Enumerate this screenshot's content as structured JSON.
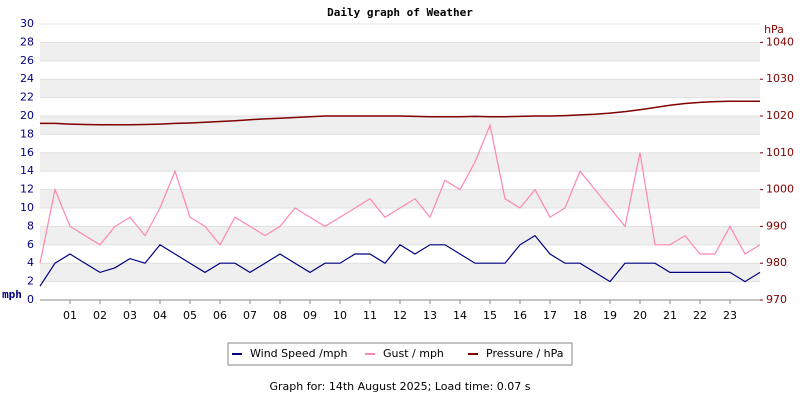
{
  "chart_data": {
    "type": "line",
    "title": "Daily graph of Weather",
    "y_label": "mph",
    "y2_label": "hPa",
    "footer": "Graph for: 14th August 2025; Load time: 0.07 s",
    "x": [
      0,
      0.5,
      1,
      1.5,
      2,
      2.5,
      3,
      3.5,
      4,
      4.5,
      5,
      5.5,
      6,
      6.5,
      7,
      7.5,
      8,
      8.5,
      9,
      9.5,
      10,
      10.5,
      11,
      11.5,
      12,
      12.5,
      13,
      13.5,
      14,
      14.5,
      15,
      15.5,
      16,
      16.5,
      17,
      17.5,
      18,
      18.5,
      19,
      19.5,
      20,
      20.5,
      21,
      21.5,
      22,
      22.5,
      23,
      23.5,
      24
    ],
    "xlim": [
      0,
      24
    ],
    "xticks": [
      {
        "value": 1,
        "label": "01"
      },
      {
        "value": 2,
        "label": "02"
      },
      {
        "value": 3,
        "label": "03"
      },
      {
        "value": 4,
        "label": "04"
      },
      {
        "value": 5,
        "label": "05"
      },
      {
        "value": 6,
        "label": "06"
      },
      {
        "value": 7,
        "label": "07"
      },
      {
        "value": 8,
        "label": "08"
      },
      {
        "value": 9,
        "label": "09"
      },
      10,
      11,
      12,
      13,
      14,
      15,
      16,
      17,
      18,
      19,
      20,
      21,
      22,
      23
    ],
    "ylim": [
      0,
      30
    ],
    "yticks": [
      0,
      2,
      4,
      6,
      8,
      10,
      12,
      14,
      16,
      18,
      20,
      22,
      24,
      26,
      28,
      30
    ],
    "y2lim": [
      970,
      1045
    ],
    "y2ticks": [
      970,
      980,
      990,
      1000,
      1010,
      1020,
      1030,
      1040
    ],
    "grid": true,
    "legend": "bottom",
    "series": [
      {
        "name": "Wind Speed /mph",
        "color": "#000080",
        "values": [
          1.5,
          4,
          5,
          4,
          3,
          3.5,
          4.5,
          4,
          6,
          5,
          4,
          3,
          4,
          4,
          3,
          4,
          5,
          4,
          3,
          4,
          4,
          5,
          5,
          4,
          6,
          5,
          6,
          6,
          5,
          4,
          4,
          4,
          6,
          7,
          5,
          4,
          4,
          3,
          2,
          4,
          4,
          4,
          3,
          3,
          3,
          3,
          3,
          2,
          3
        ]
      },
      {
        "name": "Gust / mph",
        "color": "#ff88aa",
        "values": [
          4,
          12,
          8,
          7,
          6,
          8,
          9,
          7,
          10,
          14,
          9,
          8,
          6,
          9,
          8,
          7,
          8,
          10,
          9,
          8,
          9,
          10,
          11,
          9,
          10,
          11,
          9,
          13,
          12,
          15,
          19,
          11,
          10,
          12,
          9,
          10,
          14,
          12,
          10,
          8,
          16,
          6,
          6,
          7,
          5,
          5,
          8,
          5,
          6
        ]
      },
      {
        "name": "Pressure / hPa",
        "color": "#800000",
        "axis": "y2",
        "values": [
          1018,
          1018,
          1017.8,
          1017.7,
          1017.6,
          1017.6,
          1017.6,
          1017.7,
          1017.8,
          1018,
          1018.1,
          1018.3,
          1018.5,
          1018.7,
          1019,
          1019.2,
          1019.4,
          1019.6,
          1019.8,
          1020,
          1020,
          1020,
          1020,
          1020,
          1020,
          1019.9,
          1019.8,
          1019.8,
          1019.8,
          1019.9,
          1019.8,
          1019.8,
          1019.9,
          1020,
          1020,
          1020.1,
          1020.3,
          1020.5,
          1020.8,
          1021.2,
          1021.7,
          1022.3,
          1022.9,
          1023.4,
          1023.7,
          1023.9,
          1024,
          1024,
          1024
        ]
      }
    ]
  }
}
